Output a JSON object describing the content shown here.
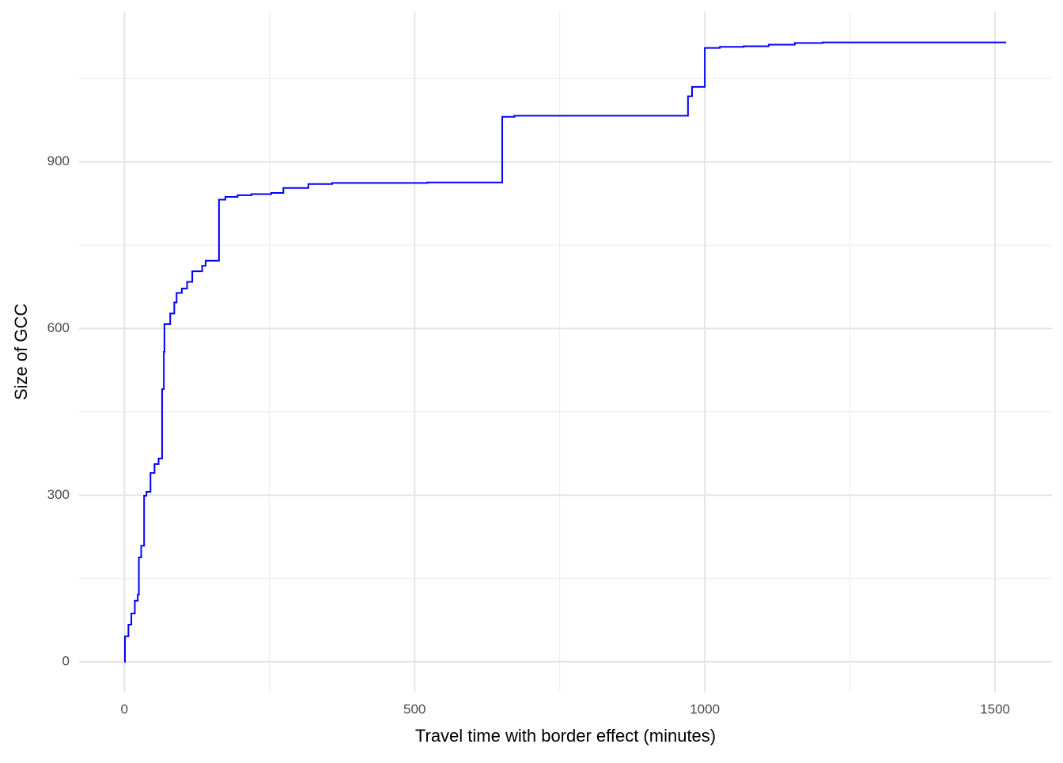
{
  "chart_data": {
    "type": "step",
    "x_label": "Travel time with border effect (minutes)",
    "y_label": "Size of GCC",
    "series": [
      {
        "name": "GCC",
        "color": "#0000ff",
        "x": [
          0,
          1,
          7,
          12,
          18,
          23,
          25,
          29,
          34,
          38,
          45,
          52,
          59,
          65,
          68,
          69,
          79,
          86,
          90,
          99,
          108,
          117,
          134,
          140,
          163,
          174,
          195,
          219,
          253,
          274,
          317,
          358,
          522,
          651,
          672,
          971,
          978,
          1000,
          1026,
          1067,
          1110,
          1155,
          1203,
          1519
        ],
        "values": [
          0,
          46,
          67,
          87,
          110,
          121,
          188,
          209,
          299,
          306,
          340,
          356,
          366,
          491,
          558,
          608,
          627,
          647,
          664,
          672,
          684,
          703,
          713,
          722,
          832,
          837,
          840,
          842,
          844,
          853,
          860,
          862,
          863,
          981,
          983,
          1018,
          1035,
          1105,
          1107,
          1108,
          1111,
          1114,
          1115,
          1115
        ]
      }
    ],
    "xlim": [
      -78,
      1598
    ],
    "ylim": [
      -54,
      1170
    ],
    "xticks": [
      0,
      500,
      1000,
      1500
    ],
    "yticks": [
      0,
      300,
      600,
      900
    ],
    "xminor": [
      250,
      750,
      1250
    ],
    "yminor": [
      150,
      450,
      750,
      1050
    ],
    "grid": true
  }
}
